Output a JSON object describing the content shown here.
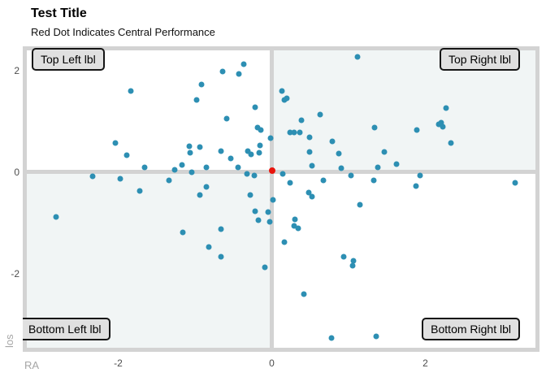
{
  "title": "Test Title",
  "subtitle": "Red Dot Indicates Central Performance",
  "axes": {
    "x": {
      "label": "RA"
    },
    "y": {
      "label": "los"
    }
  },
  "quadrant_labels": {
    "top_left": "Top Left lbl",
    "top_right": "Top Right lbl",
    "bottom_left": "Bottom Left lbl",
    "bottom_right": "Bottom Right lbl"
  },
  "colors": {
    "point": "#2d8fb3",
    "center_point": "#e8140c",
    "panel_border": "#d3d3d3",
    "quadrant_tint": "#f1f5f5",
    "label_box_fill": "#e0e0e0",
    "axis_title_text": "#a6a6a6",
    "tick_text": "#4d4d4d"
  },
  "chart_data": {
    "type": "scatter",
    "title": "Test Title",
    "subtitle": "Red Dot Indicates Central Performance",
    "xlabel": "RA",
    "ylabel": "los",
    "xlim": [
      -3.19,
      3.43
    ],
    "ylim": [
      -3.46,
      2.4
    ],
    "x_ticks": [
      -2,
      0,
      2
    ],
    "x_tick_labels": [
      "-2",
      "0",
      "2"
    ],
    "y_ticks": [
      2,
      0,
      -2
    ],
    "y_tick_labels": [
      "2",
      "0",
      "-2"
    ],
    "grid": false,
    "quadrant_dividers": {
      "x": 0,
      "y": 0
    },
    "series": [
      {
        "name": "observations",
        "color": "#2d8fb3",
        "points": [
          [
            -2.81,
            -0.88
          ],
          [
            -2.33,
            -0.08
          ],
          [
            -2.04,
            0.58
          ],
          [
            -1.97,
            -0.13
          ],
          [
            -1.89,
            0.34
          ],
          [
            -1.84,
            1.6
          ],
          [
            -1.72,
            -0.37
          ],
          [
            -1.66,
            0.1
          ],
          [
            -1.34,
            -0.16
          ],
          [
            -1.26,
            0.05
          ],
          [
            -1.17,
            0.14
          ],
          [
            -1.16,
            -1.18
          ],
          [
            -1.07,
            0.51
          ],
          [
            -1.06,
            0.38
          ],
          [
            -1.04,
            0.0
          ],
          [
            -0.98,
            1.42
          ],
          [
            -0.94,
            0.5
          ],
          [
            -0.94,
            -0.45
          ],
          [
            -0.92,
            1.73
          ],
          [
            -0.85,
            0.1
          ],
          [
            -0.85,
            -0.29
          ],
          [
            -0.82,
            -1.47
          ],
          [
            -0.66,
            0.42
          ],
          [
            -0.66,
            -1.12
          ],
          [
            -0.66,
            -1.66
          ],
          [
            -0.64,
            1.98
          ],
          [
            -0.59,
            1.06
          ],
          [
            -0.53,
            0.27
          ],
          [
            -0.44,
            0.1
          ],
          [
            -0.43,
            1.94
          ],
          [
            -0.37,
            2.13
          ],
          [
            -0.32,
            -0.03
          ],
          [
            -0.31,
            0.42
          ],
          [
            -0.27,
            0.35
          ],
          [
            -0.28,
            -0.45
          ],
          [
            -0.23,
            -0.06
          ],
          [
            -0.22,
            1.28
          ],
          [
            -0.22,
            -0.77
          ],
          [
            -0.19,
            0.88
          ],
          [
            -0.17,
            -0.94
          ],
          [
            -0.16,
            0.38
          ],
          [
            -0.15,
            0.53
          ],
          [
            -0.14,
            0.83
          ],
          [
            -0.09,
            -1.87
          ],
          [
            -0.05,
            -0.78
          ],
          [
            -0.03,
            -0.98
          ],
          [
            -0.02,
            0.67
          ],
          [
            0.02,
            -0.54
          ],
          [
            0.13,
            1.6
          ],
          [
            0.16,
            1.42
          ],
          [
            0.2,
            1.46
          ],
          [
            0.14,
            -0.03
          ],
          [
            0.16,
            -1.38
          ],
          [
            0.24,
            0.78
          ],
          [
            0.24,
            -0.21
          ],
          [
            0.29,
            0.78
          ],
          [
            0.29,
            -1.06
          ],
          [
            0.3,
            -0.93
          ],
          [
            0.34,
            -1.1
          ],
          [
            0.37,
            0.78
          ],
          [
            0.39,
            1.02
          ],
          [
            0.42,
            -2.4
          ],
          [
            0.48,
            -0.4
          ],
          [
            0.49,
            0.69
          ],
          [
            0.49,
            0.4
          ],
          [
            0.52,
            -0.48
          ],
          [
            0.52,
            0.13
          ],
          [
            0.63,
            1.14
          ],
          [
            0.67,
            -0.16
          ],
          [
            0.78,
            -3.26
          ],
          [
            0.79,
            0.61
          ],
          [
            0.87,
            0.37
          ],
          [
            0.9,
            0.08
          ],
          [
            0.94,
            -1.66
          ],
          [
            1.03,
            -0.06
          ],
          [
            1.05,
            -1.84
          ],
          [
            1.06,
            -1.74
          ],
          [
            1.12,
            2.27
          ],
          [
            1.15,
            -0.64
          ],
          [
            1.33,
            -0.16
          ],
          [
            1.34,
            0.88
          ],
          [
            1.36,
            -3.23
          ],
          [
            1.38,
            0.1
          ],
          [
            1.47,
            0.4
          ],
          [
            1.62,
            0.16
          ],
          [
            1.88,
            -0.27
          ],
          [
            1.89,
            0.83
          ],
          [
            1.93,
            -0.06
          ],
          [
            2.17,
            0.94
          ],
          [
            2.21,
            0.98
          ],
          [
            2.23,
            0.9
          ],
          [
            2.27,
            1.26
          ],
          [
            2.33,
            0.58
          ],
          [
            3.17,
            -0.21
          ]
        ]
      },
      {
        "name": "central-performance",
        "color": "#e8140c",
        "points": [
          [
            0.01,
            0.03
          ]
        ]
      }
    ]
  }
}
